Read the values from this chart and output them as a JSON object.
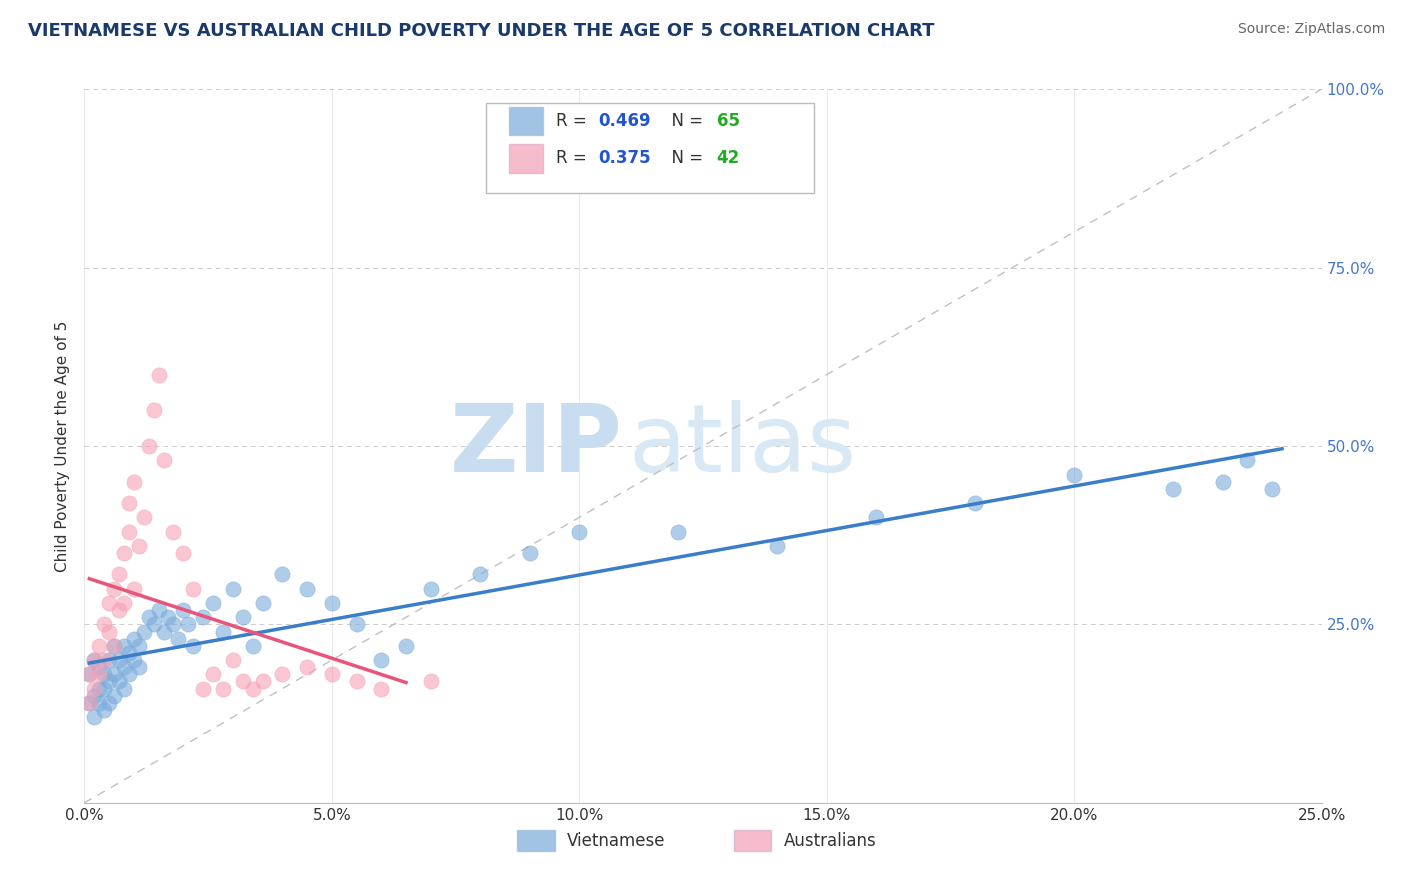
{
  "title": "VIETNAMESE VS AUSTRALIAN CHILD POVERTY UNDER THE AGE OF 5 CORRELATION CHART",
  "source": "Source: ZipAtlas.com",
  "ylabel": "Child Poverty Under the Age of 5",
  "xlim": [
    0.0,
    0.25
  ],
  "ylim": [
    0.0,
    1.0
  ],
  "xtick_labels": [
    "0.0%",
    "5.0%",
    "10.0%",
    "15.0%",
    "20.0%",
    "25.0%"
  ],
  "xtick_vals": [
    0.0,
    0.05,
    0.1,
    0.15,
    0.2,
    0.25
  ],
  "ytick_labels": [
    "25.0%",
    "50.0%",
    "75.0%",
    "100.0%"
  ],
  "ytick_vals": [
    0.25,
    0.5,
    0.75,
    1.0
  ],
  "watermark_zip": "ZIP",
  "watermark_atlas": "atlas",
  "background_color": "#ffffff",
  "vietnamese_color": "#7aabdb",
  "australian_color": "#f5a0b5",
  "vietnamese_R": 0.469,
  "vietnamese_N": 65,
  "australian_R": 0.375,
  "australian_N": 42,
  "legend_vietnamese": "Vietnamese",
  "legend_australian": "Australians",
  "title_color": "#1a3a6b",
  "R_color": "#2255cc",
  "N_color": "#22aa22",
  "viet_x": [
    0.001,
    0.001,
    0.002,
    0.002,
    0.002,
    0.003,
    0.003,
    0.003,
    0.004,
    0.004,
    0.004,
    0.005,
    0.005,
    0.005,
    0.006,
    0.006,
    0.006,
    0.007,
    0.007,
    0.008,
    0.008,
    0.008,
    0.009,
    0.009,
    0.01,
    0.01,
    0.011,
    0.011,
    0.012,
    0.013,
    0.014,
    0.015,
    0.016,
    0.017,
    0.018,
    0.019,
    0.02,
    0.021,
    0.022,
    0.024,
    0.026,
    0.028,
    0.03,
    0.032,
    0.034,
    0.036,
    0.04,
    0.045,
    0.05,
    0.055,
    0.06,
    0.065,
    0.07,
    0.08,
    0.09,
    0.1,
    0.12,
    0.14,
    0.16,
    0.18,
    0.2,
    0.22,
    0.23,
    0.235,
    0.24
  ],
  "viet_y": [
    0.18,
    0.14,
    0.2,
    0.15,
    0.12,
    0.16,
    0.19,
    0.14,
    0.18,
    0.16,
    0.13,
    0.2,
    0.17,
    0.14,
    0.22,
    0.18,
    0.15,
    0.2,
    0.17,
    0.22,
    0.19,
    0.16,
    0.21,
    0.18,
    0.23,
    0.2,
    0.22,
    0.19,
    0.24,
    0.26,
    0.25,
    0.27,
    0.24,
    0.26,
    0.25,
    0.23,
    0.27,
    0.25,
    0.22,
    0.26,
    0.28,
    0.24,
    0.3,
    0.26,
    0.22,
    0.28,
    0.32,
    0.3,
    0.28,
    0.25,
    0.2,
    0.22,
    0.3,
    0.32,
    0.35,
    0.38,
    0.38,
    0.36,
    0.4,
    0.42,
    0.46,
    0.44,
    0.45,
    0.48,
    0.44
  ],
  "aus_x": [
    0.001,
    0.001,
    0.002,
    0.002,
    0.003,
    0.003,
    0.004,
    0.004,
    0.005,
    0.005,
    0.006,
    0.006,
    0.007,
    0.007,
    0.008,
    0.008,
    0.009,
    0.009,
    0.01,
    0.01,
    0.011,
    0.012,
    0.013,
    0.014,
    0.015,
    0.016,
    0.018,
    0.02,
    0.022,
    0.024,
    0.026,
    0.028,
    0.03,
    0.032,
    0.034,
    0.036,
    0.04,
    0.045,
    0.05,
    0.055,
    0.06,
    0.07
  ],
  "aus_y": [
    0.18,
    0.14,
    0.2,
    0.16,
    0.22,
    0.18,
    0.25,
    0.2,
    0.28,
    0.24,
    0.3,
    0.22,
    0.32,
    0.27,
    0.35,
    0.28,
    0.42,
    0.38,
    0.45,
    0.3,
    0.36,
    0.4,
    0.5,
    0.55,
    0.6,
    0.48,
    0.38,
    0.35,
    0.3,
    0.16,
    0.18,
    0.16,
    0.2,
    0.17,
    0.16,
    0.17,
    0.18,
    0.19,
    0.18,
    0.17,
    0.16,
    0.17
  ]
}
